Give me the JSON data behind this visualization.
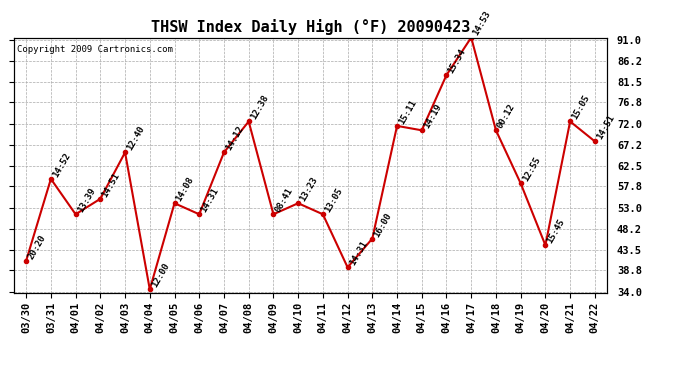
{
  "title": "THSW Index Daily High (°F) 20090423",
  "copyright": "Copyright 2009 Cartronics.com",
  "dates": [
    "03/30",
    "03/31",
    "04/01",
    "04/02",
    "04/03",
    "04/04",
    "04/05",
    "04/06",
    "04/07",
    "04/08",
    "04/09",
    "04/10",
    "04/11",
    "04/12",
    "04/13",
    "04/14",
    "04/15",
    "04/16",
    "04/17",
    "04/18",
    "04/19",
    "04/20",
    "04/21",
    "04/22"
  ],
  "values": [
    41.0,
    59.5,
    51.5,
    55.0,
    65.5,
    34.5,
    54.0,
    51.5,
    65.5,
    72.5,
    51.5,
    54.0,
    51.5,
    39.5,
    46.0,
    71.5,
    70.5,
    83.0,
    91.5,
    70.5,
    58.5,
    44.5,
    72.5,
    68.0
  ],
  "labels": [
    "20:20",
    "14:52",
    "13:39",
    "14:51",
    "12:40",
    "12:00",
    "14:08",
    "14:31",
    "14:12",
    "12:38",
    "08:41",
    "13:23",
    "13:05",
    "14:31",
    "16:00",
    "15:11",
    "14:19",
    "15:34",
    "14:53",
    "00:12",
    "12:55",
    "15:45",
    "15:05",
    "14:51"
  ],
  "line_color": "#cc0000",
  "marker_color": "#cc0000",
  "bg_color": "#ffffff",
  "grid_color": "#aaaaaa",
  "ylim_min": 34.0,
  "ylim_max": 91.0,
  "yticks": [
    34.0,
    38.8,
    43.5,
    48.2,
    53.0,
    57.8,
    62.5,
    67.2,
    72.0,
    76.8,
    81.5,
    86.2,
    91.0
  ],
  "title_fontsize": 11,
  "label_fontsize": 6.5,
  "tick_fontsize": 7.5,
  "copyright_fontsize": 6.5
}
